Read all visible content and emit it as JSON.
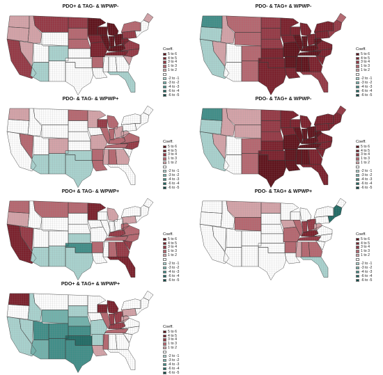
{
  "colors": {
    "scale": {
      "5 to 6": "#5e1119",
      "4 to 5": "#7a1f2a",
      "3 to 4": "#953844",
      "1 to 3": "#b6666f",
      "1 to 2": "#d5a3a8",
      "0": "#ffffff",
      "-2 to -1": "#a9d3cf",
      "-3 to -2": "#72b2ac",
      "-4 to -3": "#3f8e88",
      "-6 to -4": "#1f6a64",
      "-6 to -5": "#0f4a46"
    },
    "border": "#8a8a8a",
    "state_border": "#3a3a3a"
  },
  "legend": {
    "title": "Coeff.",
    "items": [
      "5 to 6",
      "4 to 5",
      "3 to 4",
      "1 to 3",
      "1 to 2",
      "",
      "-2 to -1",
      "-3 to -2",
      "-4 to -3",
      "-6 to -4",
      "-6 to -5"
    ]
  },
  "panels": [
    {
      "title": "PDO+ & TAG- & WPWP-",
      "regions": [
        {
          "state": "CA",
          "value": "3 to 4"
        },
        {
          "state": "NV",
          "value": "1 to 2"
        },
        {
          "state": "WA",
          "value": "1 to 2"
        },
        {
          "state": "OR",
          "value": "1 to 2"
        },
        {
          "state": "ID",
          "value": "1 to 2"
        },
        {
          "state": "MT",
          "value": "3 to 4"
        },
        {
          "state": "ND",
          "value": "3 to 4"
        },
        {
          "state": "SD",
          "value": "1 to 3"
        },
        {
          "state": "NE",
          "value": "1 to 3"
        },
        {
          "state": "AZ",
          "value": "-2 to -1"
        },
        {
          "state": "CO",
          "value": "-2 to -1"
        },
        {
          "state": "MN",
          "value": "5 to 6"
        },
        {
          "state": "WI",
          "value": "5 to 6"
        },
        {
          "state": "MI",
          "value": "5 to 6"
        },
        {
          "state": "IA",
          "value": "4 to 5"
        },
        {
          "state": "IL",
          "value": "5 to 6"
        },
        {
          "state": "IN",
          "value": "5 to 6"
        },
        {
          "state": "OH",
          "value": "5 to 6"
        },
        {
          "state": "MO",
          "value": "4 to 5"
        },
        {
          "state": "KY",
          "value": "5 to 6"
        },
        {
          "state": "TN",
          "value": "4 to 5"
        },
        {
          "state": "WV",
          "value": "4 to 5"
        },
        {
          "state": "VA",
          "value": "3 to 4"
        },
        {
          "state": "NC",
          "value": "3 to 4"
        },
        {
          "state": "PA",
          "value": "3 to 4"
        },
        {
          "state": "NY",
          "value": "1 to 3"
        },
        {
          "state": "AR",
          "value": "1 to 3"
        },
        {
          "state": "FL",
          "value": "-2 to -1"
        },
        {
          "state": "ME",
          "value": "1 to 2"
        },
        {
          "state": "SC",
          "value": "1 to 2"
        }
      ]
    },
    {
      "title": "PDO- & TAG+ & WPWP-",
      "regions": [
        {
          "state": "WA",
          "value": "-4 to -3"
        },
        {
          "state": "OR",
          "value": "-2 to -1"
        },
        {
          "state": "CA",
          "value": "-2 to -1"
        },
        {
          "state": "NV",
          "value": "1 to 2"
        },
        {
          "state": "ID",
          "value": "1 to 2"
        },
        {
          "state": "MT",
          "value": "1 to 3"
        },
        {
          "state": "WY",
          "value": "1 to 3"
        },
        {
          "state": "CO",
          "value": "1 to 3"
        },
        {
          "state": "NM",
          "value": "1 to 3"
        },
        {
          "state": "ND",
          "value": "3 to 4"
        },
        {
          "state": "SD",
          "value": "3 to 4"
        },
        {
          "state": "NE",
          "value": "3 to 4"
        },
        {
          "state": "KS",
          "value": "4 to 5"
        },
        {
          "state": "OK",
          "value": "4 to 5"
        },
        {
          "state": "TX",
          "value": "4 to 5"
        },
        {
          "state": "MN",
          "value": "4 to 5"
        },
        {
          "state": "IA",
          "value": "4 to 5"
        },
        {
          "state": "MO",
          "value": "5 to 6"
        },
        {
          "state": "AR",
          "value": "5 to 6"
        },
        {
          "state": "LA",
          "value": "4 to 5"
        },
        {
          "state": "WI",
          "value": "4 to 5"
        },
        {
          "state": "IL",
          "value": "5 to 6"
        },
        {
          "state": "MI",
          "value": "4 to 5"
        },
        {
          "state": "IN",
          "value": "5 to 6"
        },
        {
          "state": "OH",
          "value": "4 to 5"
        },
        {
          "state": "KY",
          "value": "5 to 6"
        },
        {
          "state": "TN",
          "value": "5 to 6"
        },
        {
          "state": "MS",
          "value": "5 to 6"
        },
        {
          "state": "AL",
          "value": "5 to 6"
        },
        {
          "state": "GA",
          "value": "4 to 5"
        },
        {
          "state": "FL",
          "value": "3 to 4"
        },
        {
          "state": "SC",
          "value": "4 to 5"
        },
        {
          "state": "NC",
          "value": "4 to 5"
        },
        {
          "state": "VA",
          "value": "4 to 5"
        },
        {
          "state": "WV",
          "value": "5 to 6"
        },
        {
          "state": "PA",
          "value": "4 to 5"
        },
        {
          "state": "NY",
          "value": "4 to 5"
        },
        {
          "state": "NE_US",
          "value": "3 to 4"
        },
        {
          "state": "ME",
          "value": "1 to 3"
        }
      ]
    },
    {
      "title": "PDO- & TAG- & WPWP+",
      "regions": [
        {
          "state": "WA",
          "value": "1 to 2"
        },
        {
          "state": "NV",
          "value": "1 to 3"
        },
        {
          "state": "AZ",
          "value": "-2 to -1"
        },
        {
          "state": "NM",
          "value": "-2 to -1"
        },
        {
          "state": "CO",
          "value": "1 to 2"
        },
        {
          "state": "OK",
          "value": "-2 to -1"
        },
        {
          "state": "ND",
          "value": "1 to 3"
        },
        {
          "state": "MN",
          "value": "1 to 2"
        },
        {
          "state": "WI",
          "value": "3 to 4"
        },
        {
          "state": "MI",
          "value": "1 to 3"
        },
        {
          "state": "IL",
          "value": "1 to 3"
        },
        {
          "state": "IN",
          "value": "1 to 3"
        },
        {
          "state": "OH",
          "value": "1 to 2"
        },
        {
          "state": "MO",
          "value": "1 to 2"
        },
        {
          "state": "KY",
          "value": "1 to 3"
        },
        {
          "state": "TN",
          "value": "1 to 3"
        },
        {
          "state": "AR",
          "value": "1 to 3"
        },
        {
          "state": "LA",
          "value": "1 to 3"
        },
        {
          "state": "MS",
          "value": "1 to 2"
        },
        {
          "state": "AL",
          "value": "1 to 3"
        },
        {
          "state": "GA",
          "value": "1 to 2"
        },
        {
          "state": "NC",
          "value": "3 to 4"
        },
        {
          "state": "VA",
          "value": "1 to 3"
        },
        {
          "state": "WV",
          "value": "1 to 2"
        },
        {
          "state": "TX",
          "value": "-2 to -1"
        }
      ]
    },
    {
      "title": "PDO- & TAG+ & WPWP-",
      "regions": [
        {
          "state": "WA",
          "value": "-4 to -3"
        },
        {
          "state": "OR",
          "value": "-2 to -1"
        },
        {
          "state": "CA",
          "value": "-2 to -1"
        },
        {
          "state": "NV",
          "value": "1 to 2"
        },
        {
          "state": "ID",
          "value": "1 to 2"
        },
        {
          "state": "MT",
          "value": "1 to 2"
        },
        {
          "state": "WY",
          "value": "1 to 2"
        },
        {
          "state": "CO",
          "value": "1 to 3"
        },
        {
          "state": "NM",
          "value": "1 to 3"
        },
        {
          "state": "ND",
          "value": "3 to 4"
        },
        {
          "state": "SD",
          "value": "3 to 4"
        },
        {
          "state": "NE",
          "value": "3 to 4"
        },
        {
          "state": "KS",
          "value": "4 to 5"
        },
        {
          "state": "OK",
          "value": "4 to 5"
        },
        {
          "state": "TX",
          "value": "5 to 6"
        },
        {
          "state": "MN",
          "value": "4 to 5"
        },
        {
          "state": "IA",
          "value": "4 to 5"
        },
        {
          "state": "MO",
          "value": "5 to 6"
        },
        {
          "state": "AR",
          "value": "5 to 6"
        },
        {
          "state": "LA",
          "value": "5 to 6"
        },
        {
          "state": "WI",
          "value": "4 to 5"
        },
        {
          "state": "IL",
          "value": "5 to 6"
        },
        {
          "state": "MI",
          "value": "4 to 5"
        },
        {
          "state": "IN",
          "value": "5 to 6"
        },
        {
          "state": "OH",
          "value": "5 to 6"
        },
        {
          "state": "KY",
          "value": "5 to 6"
        },
        {
          "state": "TN",
          "value": "5 to 6"
        },
        {
          "state": "MS",
          "value": "5 to 6"
        },
        {
          "state": "AL",
          "value": "5 to 6"
        },
        {
          "state": "GA",
          "value": "4 to 5"
        },
        {
          "state": "FL",
          "value": "4 to 5"
        },
        {
          "state": "SC",
          "value": "4 to 5"
        },
        {
          "state": "NC",
          "value": "4 to 5"
        },
        {
          "state": "VA",
          "value": "4 to 5"
        },
        {
          "state": "WV",
          "value": "5 to 6"
        },
        {
          "state": "PA",
          "value": "4 to 5"
        },
        {
          "state": "NY",
          "value": "4 to 5"
        },
        {
          "state": "NE_US",
          "value": "4 to 5"
        },
        {
          "state": "ME",
          "value": "3 to 4"
        }
      ]
    },
    {
      "title": "PDO+ & TAG- & WPWP+",
      "regions": [
        {
          "state": "CA",
          "value": "4 to 5"
        },
        {
          "state": "NV",
          "value": "3 to 4"
        },
        {
          "state": "WA",
          "value": "1 to 3"
        },
        {
          "state": "OR",
          "value": "1 to 2"
        },
        {
          "state": "MT",
          "value": "1 to 3"
        },
        {
          "state": "ND",
          "value": "1 to 3"
        },
        {
          "state": "MN",
          "value": "4 to 5"
        },
        {
          "state": "AZ",
          "value": "-2 to -1"
        },
        {
          "state": "NM",
          "value": "-2 to -1"
        },
        {
          "state": "OK",
          "value": "-4 to -3"
        },
        {
          "state": "KS",
          "value": "-2 to -1"
        },
        {
          "state": "TX",
          "value": "-2 to -1"
        },
        {
          "state": "AR",
          "value": "1 to 3"
        },
        {
          "state": "TN",
          "value": "1 to 3"
        },
        {
          "state": "KY",
          "value": "3 to 4"
        },
        {
          "state": "GA",
          "value": "3 to 4"
        },
        {
          "state": "FL",
          "value": "4 to 5"
        },
        {
          "state": "SC",
          "value": "3 to 4"
        },
        {
          "state": "NC",
          "value": "1 to 3"
        },
        {
          "state": "VA",
          "value": "1 to 3"
        },
        {
          "state": "WV",
          "value": "1 to 3"
        },
        {
          "state": "PA",
          "value": "1 to 2"
        },
        {
          "state": "MI",
          "value": "1 to 2"
        },
        {
          "state": "AL",
          "value": "1 to 3"
        }
      ]
    },
    {
      "title": "PDO- & TAG+ & WPWP+",
      "regions": [
        {
          "state": "MT",
          "value": "1 to 2"
        },
        {
          "state": "ND",
          "value": "1 to 2"
        },
        {
          "state": "WY",
          "value": "1 to 3"
        },
        {
          "state": "IA",
          "value": "1 to 2"
        },
        {
          "state": "IL",
          "value": "1 to 3"
        },
        {
          "state": "IN",
          "value": "3 to 4"
        },
        {
          "state": "OH",
          "value": "3 to 4"
        },
        {
          "state": "KY",
          "value": "4 to 5"
        },
        {
          "state": "TN",
          "value": "3 to 4"
        },
        {
          "state": "MO",
          "value": "1 to 3"
        },
        {
          "state": "AR",
          "value": "1 to 3"
        },
        {
          "state": "MS",
          "value": "1 to 2"
        },
        {
          "state": "AL",
          "value": "1 to 3"
        },
        {
          "state": "GA",
          "value": "1 to 3"
        },
        {
          "state": "FL",
          "value": "-2 to -1"
        },
        {
          "state": "WV",
          "value": "1 to 2"
        },
        {
          "state": "NE_US",
          "value": "-6 to -4"
        }
      ]
    },
    {
      "title": "PDO+ & TAG+ & WPWP+",
      "regions": [
        {
          "state": "WA",
          "value": "4 to 5"
        },
        {
          "state": "CA",
          "value": "-2 to -1"
        },
        {
          "state": "NV",
          "value": "-2 to -1"
        },
        {
          "state": "ID",
          "value": "-2 to -1"
        },
        {
          "state": "WY",
          "value": "-3 to -2"
        },
        {
          "state": "UT",
          "value": "-4 to -3"
        },
        {
          "state": "CO",
          "value": "-4 to -3"
        },
        {
          "state": "AZ",
          "value": "-3 to -2"
        },
        {
          "state": "NM",
          "value": "-4 to -3"
        },
        {
          "state": "KS",
          "value": "-4 to -3"
        },
        {
          "state": "NE",
          "value": "-3 to -2"
        },
        {
          "state": "OK",
          "value": "-6 to -4"
        },
        {
          "state": "TX",
          "value": "-4 to -3"
        },
        {
          "state": "SD",
          "value": "-2 to -1"
        },
        {
          "state": "MO",
          "value": "-2 to -1"
        },
        {
          "state": "WI",
          "value": "4 to 5"
        },
        {
          "state": "MI",
          "value": "4 to 5"
        },
        {
          "state": "IL",
          "value": "1 to 3"
        },
        {
          "state": "IN",
          "value": "3 to 4"
        },
        {
          "state": "OH",
          "value": "3 to 4"
        },
        {
          "state": "KY",
          "value": "3 to 4"
        },
        {
          "state": "TN",
          "value": "1 to 3"
        },
        {
          "state": "AR",
          "value": "-2 to -1"
        },
        {
          "state": "LA",
          "value": "1 to 2"
        },
        {
          "state": "MS",
          "value": "1 to 3"
        },
        {
          "state": "PA",
          "value": "1 to 2"
        },
        {
          "state": "WV",
          "value": "1 to 2"
        }
      ]
    }
  ]
}
